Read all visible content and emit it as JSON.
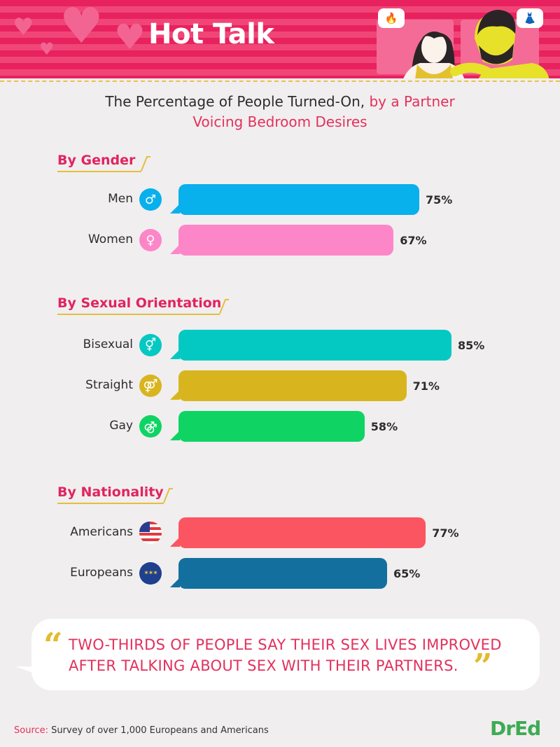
{
  "header": {
    "title": "Hot Talk",
    "icons": [
      "fire-icon",
      "dress-icon"
    ],
    "colors": {
      "stripe_a": "#e8215f",
      "stripe_b": "#f04677",
      "panel": "#f36b96"
    }
  },
  "subtitle": {
    "part1": "The Percentage of People Turned-On, ",
    "part2": "by a Partner",
    "line2": "Voicing Bedroom Desires"
  },
  "chart_data": {
    "type": "bar",
    "orientation": "horizontal",
    "title": "The Percentage of People Turned-On, by a Partner Voicing Bedroom Desires",
    "xlim": [
      0,
      100
    ],
    "unit": "%",
    "groups": [
      {
        "name": "By Gender",
        "categories": [
          "Men",
          "Women"
        ],
        "values": [
          75,
          67
        ],
        "labels": [
          "75%",
          "67%"
        ],
        "icons": [
          "male-icon",
          "female-icon"
        ],
        "colors": [
          "#08b0ec",
          "#fd86c8"
        ]
      },
      {
        "name": "By Sexual Orientation",
        "categories": [
          "Bisexual",
          "Straight",
          "Gay"
        ],
        "values": [
          85,
          71,
          58
        ],
        "labels": [
          "85%",
          "71%",
          "58%"
        ],
        "icons": [
          "bisexual-icon",
          "straight-icon",
          "gay-icon"
        ],
        "colors": [
          "#03c9c2",
          "#d8b51f",
          "#0fd464"
        ]
      },
      {
        "name": "By Nationality",
        "categories": [
          "Americans",
          "Europeans"
        ],
        "values": [
          77,
          65
        ],
        "labels": [
          "77%",
          "65%"
        ],
        "icons": [
          "us-flag-icon",
          "eu-flag-icon"
        ],
        "colors": [
          "#fb5561",
          "#13709e"
        ]
      }
    ]
  },
  "quote": {
    "text": "TWO-THIRDS OF PEOPLE SAY THEIR SEX LIVES IMPROVED AFTER TALKING ABOUT SEX WITH THEIR PARTNERS."
  },
  "source": {
    "label": "Source:",
    "text": "Survey of over 1,000 Europeans and Americans"
  },
  "logo": {
    "text": "DrEd",
    "color": "#3dab53"
  }
}
